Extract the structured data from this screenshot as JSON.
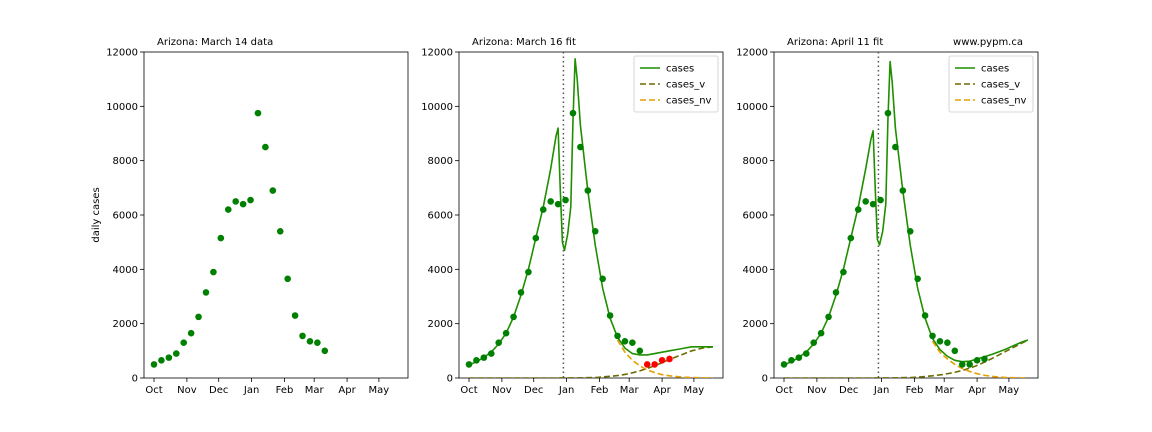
{
  "chart_data": [
    {
      "type": "scatter",
      "title": "Arizona:  March 14 data",
      "right_note": "",
      "ylabel": "daily cases",
      "xlim": [
        0,
        230
      ],
      "ylim": [
        0,
        12000
      ],
      "x_ticks": [
        {
          "label": "Oct",
          "x": 0
        },
        {
          "label": "Nov",
          "x": 31
        },
        {
          "label": "Dec",
          "x": 61
        },
        {
          "label": "Jan",
          "x": 92
        },
        {
          "label": "Feb",
          "x": 123
        },
        {
          "label": "Mar",
          "x": 151
        },
        {
          "label": "Apr",
          "x": 182
        },
        {
          "label": "May",
          "x": 212
        }
      ],
      "y_ticks": [
        0,
        2000,
        4000,
        6000,
        8000,
        10000,
        12000
      ],
      "show_vline": false,
      "colors": {
        "data": "#008000",
        "new_data": "#ff0000"
      },
      "data_points": {
        "x": [
          0,
          7,
          14,
          21,
          28,
          35,
          42,
          49,
          56,
          63,
          70,
          77,
          84,
          91,
          98,
          105,
          112,
          119,
          126,
          133,
          140,
          147,
          154,
          161
        ],
        "y": [
          500,
          650,
          750,
          900,
          1300,
          1650,
          2250,
          3150,
          3900,
          5150,
          6200,
          6500,
          6400,
          6550,
          9750,
          8500,
          6900,
          5400,
          3650,
          2300,
          1550,
          1350,
          1300,
          1000
        ]
      },
      "new_data_points": {
        "x": [],
        "y": []
      },
      "series": []
    },
    {
      "type": "line",
      "title": "Arizona:  March 16 fit",
      "right_note": "",
      "ylabel": "",
      "xlim": [
        0,
        230
      ],
      "ylim": [
        0,
        12000
      ],
      "x_ticks": [
        {
          "label": "Oct",
          "x": 0
        },
        {
          "label": "Nov",
          "x": 31
        },
        {
          "label": "Dec",
          "x": 61
        },
        {
          "label": "Jan",
          "x": 92
        },
        {
          "label": "Feb",
          "x": 123
        },
        {
          "label": "Mar",
          "x": 151
        },
        {
          "label": "Apr",
          "x": 182
        },
        {
          "label": "May",
          "x": 212
        }
      ],
      "y_ticks": [
        0,
        2000,
        4000,
        6000,
        8000,
        10000,
        12000
      ],
      "show_vline": true,
      "vline_x": 89,
      "colors": {
        "data": "#008000",
        "new_data": "#ff0000"
      },
      "legend": [
        "cases",
        "cases_v",
        "cases_nv"
      ],
      "legend_position": "top-right",
      "data_points": {
        "x": [
          0,
          7,
          14,
          21,
          28,
          35,
          42,
          49,
          56,
          63,
          70,
          77,
          84,
          91,
          98,
          105,
          112,
          119,
          126,
          133,
          140,
          147,
          154,
          161
        ],
        "y": [
          500,
          650,
          750,
          900,
          1300,
          1650,
          2250,
          3150,
          3900,
          5150,
          6200,
          6500,
          6400,
          6550,
          9750,
          8500,
          6900,
          5400,
          3650,
          2300,
          1550,
          1350,
          1300,
          1000
        ]
      },
      "new_data_points": {
        "x": [
          168,
          175,
          182,
          189
        ],
        "y": [
          500,
          500,
          650,
          700
        ]
      },
      "series": [
        {
          "name": "cases",
          "color": "#1f8f00",
          "style": "solid",
          "width": 1.6,
          "x": [
            0,
            7,
            14,
            21,
            28,
            35,
            42,
            49,
            56,
            63,
            70,
            77,
            82,
            84,
            86,
            88,
            90,
            93,
            96,
            98,
            100,
            102,
            105,
            112,
            119,
            126,
            133,
            140,
            147,
            154,
            161,
            168,
            175,
            182,
            189,
            196,
            203,
            210,
            217,
            224,
            230
          ],
          "y": [
            480,
            600,
            760,
            960,
            1250,
            1650,
            2250,
            3050,
            4000,
            5150,
            6300,
            7700,
            8900,
            9200,
            7000,
            5000,
            4700,
            5300,
            6300,
            9500,
            11750,
            11000,
            9300,
            6900,
            4900,
            3300,
            2200,
            1500,
            1100,
            900,
            850,
            850,
            900,
            950,
            1000,
            1050,
            1100,
            1150,
            1150,
            1150,
            1150
          ]
        },
        {
          "name": "cases_v",
          "color": "#6b6b00",
          "style": "dashed",
          "width": 1.6,
          "x": [
            0,
            20,
            40,
            60,
            80,
            100,
            110,
            120,
            130,
            140,
            150,
            160,
            170,
            180,
            190,
            200,
            210,
            220,
            230
          ],
          "y": [
            0,
            0,
            0,
            0,
            0,
            5,
            10,
            20,
            50,
            90,
            150,
            250,
            380,
            530,
            700,
            850,
            1000,
            1100,
            1150
          ]
        },
        {
          "name": "cases_nv",
          "color": "#e8a000",
          "style": "dashed",
          "width": 1.6,
          "x": [
            140,
            147,
            154,
            161,
            168,
            175,
            182,
            189,
            196,
            203,
            210,
            217,
            224,
            230
          ],
          "y": [
            1400,
            950,
            650,
            450,
            300,
            200,
            120,
            80,
            50,
            30,
            20,
            10,
            5,
            0
          ]
        }
      ]
    },
    {
      "type": "line",
      "title": "Arizona:  April 11 fit",
      "right_note": "www.pypm.ca",
      "ylabel": "",
      "xlim": [
        0,
        230
      ],
      "ylim": [
        0,
        12000
      ],
      "x_ticks": [
        {
          "label": "Oct",
          "x": 0
        },
        {
          "label": "Nov",
          "x": 31
        },
        {
          "label": "Dec",
          "x": 61
        },
        {
          "label": "Jan",
          "x": 92
        },
        {
          "label": "Feb",
          "x": 123
        },
        {
          "label": "Mar",
          "x": 151
        },
        {
          "label": "Apr",
          "x": 182
        },
        {
          "label": "May",
          "x": 212
        }
      ],
      "y_ticks": [
        0,
        2000,
        4000,
        6000,
        8000,
        10000,
        12000
      ],
      "show_vline": true,
      "vline_x": 89,
      "colors": {
        "data": "#008000",
        "new_data": "#ff0000"
      },
      "legend": [
        "cases",
        "cases_v",
        "cases_nv"
      ],
      "legend_position": "top-right",
      "data_points": {
        "x": [
          0,
          7,
          14,
          21,
          28,
          35,
          42,
          49,
          56,
          63,
          70,
          77,
          84,
          91,
          98,
          105,
          112,
          119,
          126,
          133,
          140,
          147,
          154,
          161,
          168,
          175,
          182,
          189
        ],
        "y": [
          500,
          650,
          750,
          900,
          1300,
          1650,
          2250,
          3150,
          3900,
          5150,
          6200,
          6500,
          6400,
          6550,
          9750,
          8500,
          6900,
          5400,
          3650,
          2300,
          1550,
          1350,
          1300,
          1000,
          500,
          500,
          650,
          700
        ]
      },
      "new_data_points": {
        "x": [],
        "y": []
      },
      "series": [
        {
          "name": "cases",
          "color": "#1f8f00",
          "style": "solid",
          "width": 1.6,
          "x": [
            0,
            7,
            14,
            21,
            28,
            35,
            42,
            49,
            56,
            63,
            70,
            77,
            82,
            84,
            86,
            88,
            90,
            93,
            96,
            98,
            100,
            102,
            105,
            112,
            119,
            126,
            133,
            140,
            147,
            154,
            161,
            168,
            175,
            182,
            189,
            196,
            203,
            210,
            217,
            224,
            230
          ],
          "y": [
            480,
            600,
            760,
            960,
            1250,
            1650,
            2250,
            3050,
            4000,
            5150,
            6300,
            7700,
            8800,
            9100,
            7000,
            5100,
            4900,
            5400,
            6400,
            9600,
            11650,
            10900,
            9200,
            6900,
            4900,
            3300,
            2200,
            1450,
            1050,
            800,
            650,
            600,
            620,
            700,
            780,
            870,
            970,
            1080,
            1200,
            1320,
            1400
          ]
        },
        {
          "name": "cases_v",
          "color": "#6b6b00",
          "style": "dashed",
          "width": 1.6,
          "x": [
            0,
            20,
            40,
            60,
            80,
            100,
            110,
            120,
            130,
            140,
            150,
            160,
            170,
            180,
            190,
            200,
            210,
            220,
            230
          ],
          "y": [
            0,
            0,
            0,
            0,
            0,
            5,
            10,
            20,
            45,
            80,
            130,
            200,
            300,
            430,
            600,
            800,
            1000,
            1200,
            1400
          ]
        },
        {
          "name": "cases_nv",
          "color": "#e8a000",
          "style": "dashed",
          "width": 1.6,
          "x": [
            140,
            147,
            154,
            161,
            168,
            175,
            182,
            189,
            196,
            203,
            210,
            217,
            224,
            230
          ],
          "y": [
            1350,
            950,
            700,
            500,
            350,
            240,
            160,
            100,
            60,
            35,
            20,
            10,
            5,
            0
          ]
        }
      ]
    }
  ]
}
